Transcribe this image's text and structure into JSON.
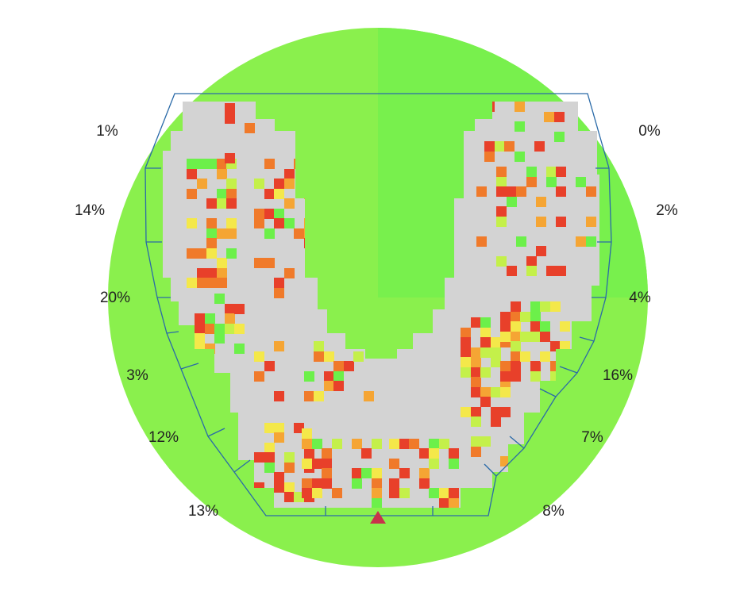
{
  "colors": {
    "background_green": "#8af04d",
    "upper_right_green": "#78f04d",
    "gray": "#d3d3d3",
    "outline": "#2a6aa8",
    "marker": "#c8324b",
    "cell_palette": [
      "#e8402a",
      "#f07a2a",
      "#f5a534",
      "#f4e84a",
      "#c4f04a",
      "#6cf04a"
    ]
  },
  "chart_data": {
    "type": "heatmap",
    "zone_labels": {
      "left": [
        "1%",
        "14%",
        "20%",
        "3%",
        "12%",
        "13%"
      ],
      "right": [
        "0%",
        "2%",
        "4%",
        "16%",
        "7%",
        "8%"
      ]
    },
    "marker": "triangle-up"
  }
}
